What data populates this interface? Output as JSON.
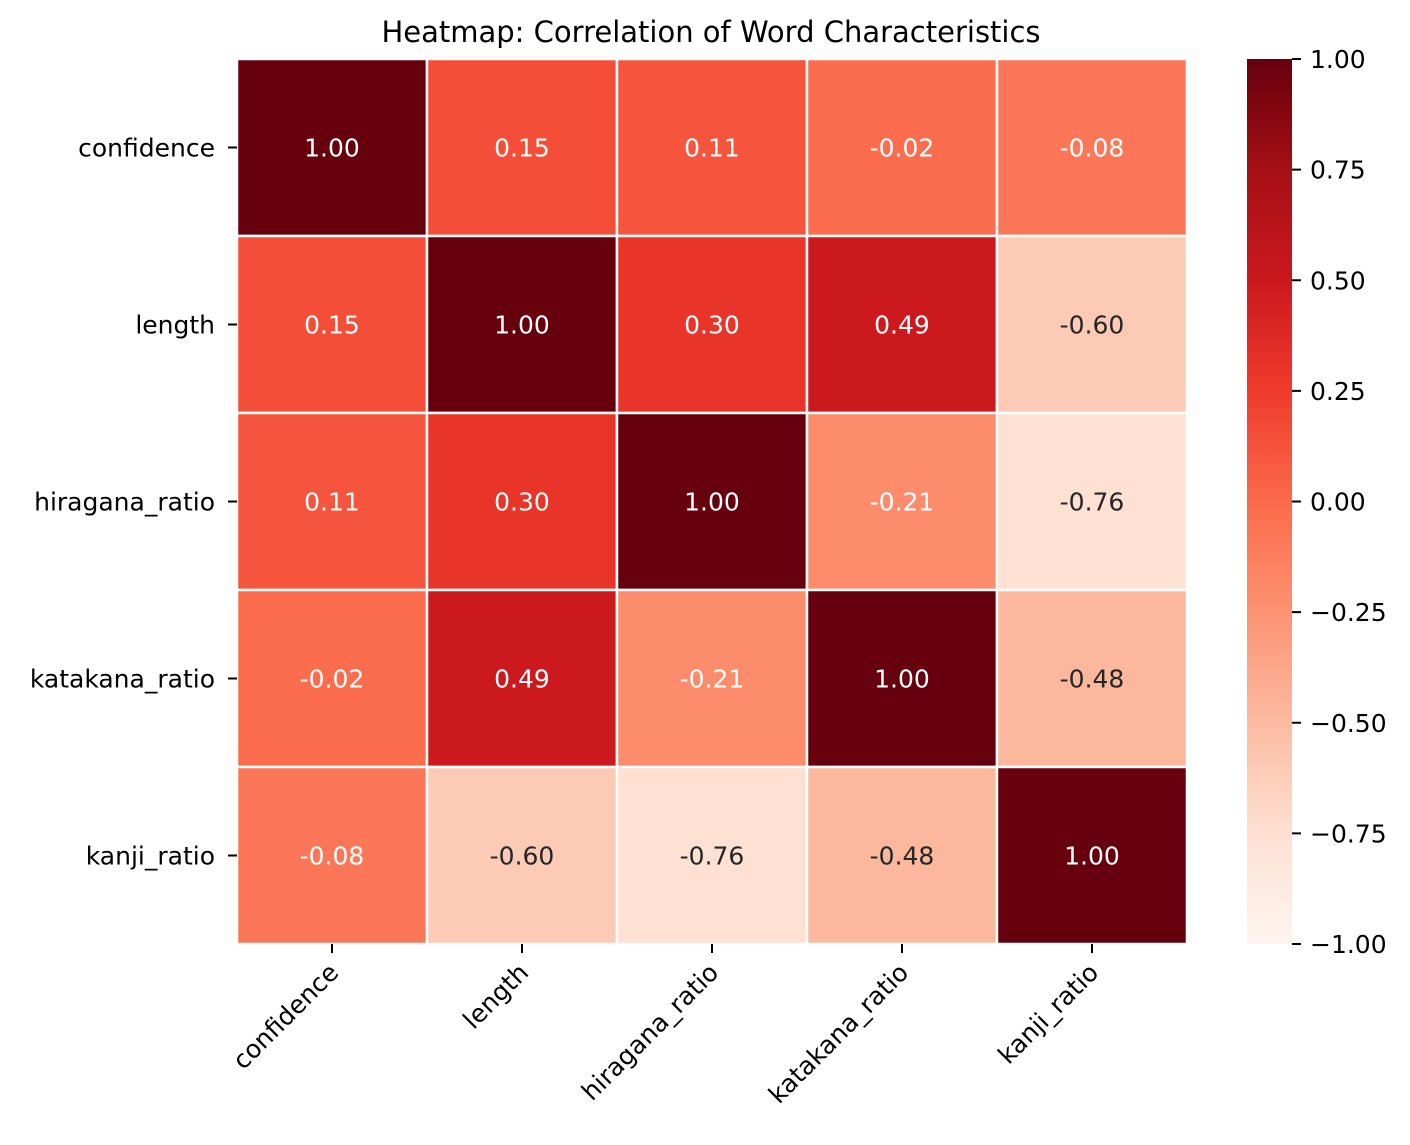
{
  "chart_data": {
    "type": "heatmap",
    "title": "Heatmap: Correlation of Word Characteristics",
    "xlabel": "",
    "ylabel": "",
    "row_labels": [
      "confidence",
      "length",
      "hiragana_ratio",
      "katakana_ratio",
      "kanji_ratio"
    ],
    "col_labels": [
      "confidence",
      "length",
      "hiragana_ratio",
      "katakana_ratio",
      "kanji_ratio"
    ],
    "values": [
      [
        1.0,
        0.15,
        0.11,
        -0.02,
        -0.08
      ],
      [
        0.15,
        1.0,
        0.3,
        0.49,
        -0.6
      ],
      [
        0.11,
        0.3,
        1.0,
        -0.21,
        -0.76
      ],
      [
        -0.02,
        0.49,
        -0.21,
        1.0,
        -0.48
      ],
      [
        -0.08,
        -0.6,
        -0.76,
        -0.48,
        1.0
      ]
    ],
    "value_format": "2 decimals",
    "colormap": "Reds",
    "colorbar": {
      "vmin": -1.0,
      "vmax": 1.0,
      "ticks": [
        1.0,
        0.75,
        0.5,
        0.25,
        0.0,
        -0.25,
        -0.5,
        -0.75,
        -1.0
      ],
      "tick_labels": [
        "1.00",
        "0.75",
        "0.50",
        "0.25",
        "0.00",
        "−0.25",
        "−0.50",
        "−0.75",
        "−1.00"
      ]
    },
    "grid": true,
    "grid_color": "#ffffff",
    "dark_text_color": "#262626",
    "light_text_color": "#ffffff"
  }
}
